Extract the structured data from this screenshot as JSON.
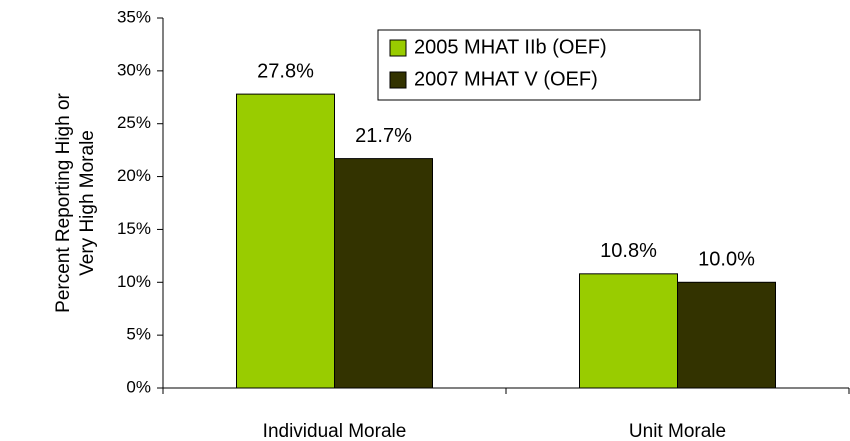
{
  "chart_data": {
    "type": "bar",
    "ylabel": [
      "Percent Reporting High or",
      "Very High Morale"
    ],
    "categories": [
      "Individual Morale",
      "Unit Morale"
    ],
    "series": [
      {
        "name": "2005 MHAT IIb (OEF)",
        "color": "#99cc00",
        "values": [
          27.8,
          10.8
        ],
        "value_labels": [
          "27.8%",
          "10.8%"
        ]
      },
      {
        "name": "2007 MHAT V (OEF)",
        "color": "#333300",
        "values": [
          21.7,
          10.0
        ],
        "value_labels": [
          "21.7%",
          "10.0%"
        ]
      }
    ],
    "ylim": [
      0,
      35
    ],
    "yticks": [
      {
        "value": 0,
        "label": "0%"
      },
      {
        "value": 5,
        "label": "5%"
      },
      {
        "value": 10,
        "label": "10%"
      },
      {
        "value": 15,
        "label": "15%"
      },
      {
        "value": 20,
        "label": "20%"
      },
      {
        "value": 25,
        "label": "25%"
      },
      {
        "value": 30,
        "label": "30%"
      },
      {
        "value": 35,
        "label": "35%"
      }
    ],
    "legend": "top-right"
  }
}
